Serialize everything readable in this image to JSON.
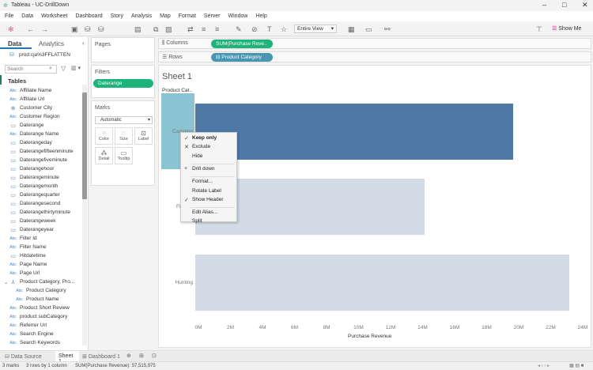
{
  "window": {
    "title": "Tableau - UC-DrillDown"
  },
  "menu": [
    "File",
    "Data",
    "Worksheet",
    "Dashboard",
    "Story",
    "Analysis",
    "Map",
    "Format",
    "Server",
    "Window",
    "Help"
  ],
  "toolbar": {
    "fit": "Entire View",
    "show_me": "Show Me"
  },
  "left": {
    "tab_data": "Data",
    "tab_analytics": "Analytics",
    "datasource": "prod:cja%3FFLATTEN",
    "search_placeholder": "Search",
    "tables": "Tables",
    "fields": [
      {
        "icon": "Abc",
        "name": "Affiliate Name"
      },
      {
        "icon": "Abc",
        "name": "Affiliate Url"
      },
      {
        "icon": "globe",
        "name": "Customer City"
      },
      {
        "icon": "Abc",
        "name": "Customer Region"
      },
      {
        "icon": "date",
        "name": "Daterange"
      },
      {
        "icon": "Abc",
        "name": "Daterange Name"
      },
      {
        "icon": "date",
        "name": "Daterangeday"
      },
      {
        "icon": "datetime",
        "name": "Daterangefifteenminute"
      },
      {
        "icon": "datetime",
        "name": "Daterangefiveminute"
      },
      {
        "icon": "datetime",
        "name": "Daterangehour"
      },
      {
        "icon": "datetime",
        "name": "Daterangeminute"
      },
      {
        "icon": "date",
        "name": "Daterangemonth"
      },
      {
        "icon": "date",
        "name": "Daterangequarter"
      },
      {
        "icon": "datetime",
        "name": "Daterangesecond"
      },
      {
        "icon": "datetime",
        "name": "Daterangethirtyminute"
      },
      {
        "icon": "date",
        "name": "Daterangeweek"
      },
      {
        "icon": "date",
        "name": "Daterangeyear"
      },
      {
        "icon": "Abc",
        "name": "Filter Id"
      },
      {
        "icon": "Abc",
        "name": "Filter Name"
      },
      {
        "icon": "datetime",
        "name": "Hitdatetime"
      },
      {
        "icon": "Abc",
        "name": "Page Name"
      },
      {
        "icon": "Abc",
        "name": "Page Url"
      },
      {
        "icon": "hierarchy",
        "name": "Product Category, Pro..."
      },
      {
        "icon": "Abc",
        "name": "Product Category",
        "child": true
      },
      {
        "icon": "Abc",
        "name": "Product Name",
        "child": true
      },
      {
        "icon": "Abc",
        "name": "Product Short Review"
      },
      {
        "icon": "Abc",
        "name": "product subCategory"
      },
      {
        "icon": "Abc",
        "name": "Referrer Url"
      },
      {
        "icon": "Abc",
        "name": "Search Engine"
      },
      {
        "icon": "Abc",
        "name": "Search Keywords"
      }
    ]
  },
  "cards": {
    "pages": "Pages",
    "filters": "Filters",
    "filter_pill": "Daterange",
    "marks": "Marks",
    "mark_type": "Automatic",
    "color": "Color",
    "size": "Size",
    "label": "Label",
    "detail": "Detail",
    "tooltip": "Tooltip"
  },
  "shelves": {
    "columns": "Columns",
    "columns_pill": "SUM(Purchase Reve..",
    "rows": "Rows",
    "rows_pill": "Product Category"
  },
  "sheet": {
    "title": "Sheet 1",
    "row_header": "Product Cat.."
  },
  "chart_data": {
    "type": "bar",
    "orientation": "horizontal",
    "categories": [
      "Camping",
      "Fishing",
      "Hunting"
    ],
    "values": [
      19850000,
      14300000,
      23370000
    ],
    "xlabel": "Purchase Revenue",
    "xlim": [
      0,
      24000000
    ],
    "xticks": [
      "0M",
      "2M",
      "4M",
      "6M",
      "8M",
      "10M",
      "12M",
      "14M",
      "16M",
      "18M",
      "20M",
      "22M",
      "24M"
    ],
    "selected": "Camping",
    "colors": {
      "selected": "#4e79a7",
      "unselected": "#d3dce6",
      "header_selected": "#8cc3d3"
    }
  },
  "context_menu": {
    "items": [
      {
        "label": "Keep only",
        "mark": "✓",
        "bold": true
      },
      {
        "label": "Exclude",
        "mark": "✕"
      },
      {
        "label": "Hide"
      },
      {
        "sep": true
      },
      {
        "label": "Drill down",
        "mark": "+"
      },
      {
        "sep": true
      },
      {
        "label": "Format..."
      },
      {
        "label": "Rotate Label"
      },
      {
        "label": "Show Header",
        "mark": "✓"
      },
      {
        "sep": true
      },
      {
        "label": "Edit Alias..."
      },
      {
        "label": "Split"
      }
    ]
  },
  "tabs": {
    "data_source": "Data Source",
    "sheet1": "Sheet 1",
    "dashboard1": "Dashboard 1"
  },
  "status": {
    "marks": "3 marks",
    "rows": "3 rows by 1 column",
    "sum": "SUM(Purchase Revenue): 57,515,975"
  },
  "colors": {
    "pill_green": "#1db37a",
    "pill_blue": "#4996b2"
  }
}
